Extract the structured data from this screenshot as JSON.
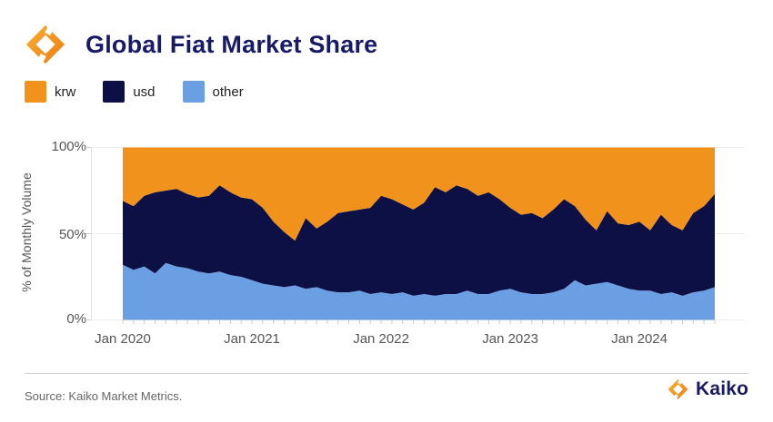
{
  "header": {
    "title": "Global Fiat Market Share"
  },
  "legend": [
    {
      "label": "krw",
      "color": "#F0921C"
    },
    {
      "label": "usd",
      "color": "#0D1045"
    },
    {
      "label": "other",
      "color": "#6B9FE4"
    }
  ],
  "y_axis": {
    "title": "% of Monthly Volume",
    "ticks": [
      "100%",
      "50%",
      "0%"
    ]
  },
  "x_axis": {
    "ticks": [
      "Jan 2020",
      "Jan 2021",
      "Jan 2022",
      "Jan 2023",
      "Jan 2024"
    ]
  },
  "footer": {
    "source": "Source: Kaiko Market Metrics.",
    "brand": "Kaiko"
  },
  "colors": {
    "krw": "#F0921C",
    "usd": "#0D1045",
    "other": "#6B9FE4",
    "grid": "#ededed",
    "axis": "#e2e2e2",
    "tick": "#cccccc",
    "tick_text": "#565656"
  },
  "chart_data": {
    "type": "area",
    "stacked": true,
    "title": "Global Fiat Market Share",
    "xlabel": "",
    "ylabel": "% of Monthly Volume",
    "ylim": [
      0,
      100
    ],
    "grid": "horizontal",
    "legend_position": "top-left",
    "x": [
      "2020-01",
      "2020-02",
      "2020-03",
      "2020-04",
      "2020-05",
      "2020-06",
      "2020-07",
      "2020-08",
      "2020-09",
      "2020-10",
      "2020-11",
      "2020-12",
      "2021-01",
      "2021-02",
      "2021-03",
      "2021-04",
      "2021-05",
      "2021-06",
      "2021-07",
      "2021-08",
      "2021-09",
      "2021-10",
      "2021-11",
      "2021-12",
      "2022-01",
      "2022-02",
      "2022-03",
      "2022-04",
      "2022-05",
      "2022-06",
      "2022-07",
      "2022-08",
      "2022-09",
      "2022-10",
      "2022-11",
      "2022-12",
      "2023-01",
      "2023-02",
      "2023-03",
      "2023-04",
      "2023-05",
      "2023-06",
      "2023-07",
      "2023-08",
      "2023-09",
      "2023-10",
      "2023-11",
      "2023-12",
      "2024-01",
      "2024-02",
      "2024-03",
      "2024-04",
      "2024-05",
      "2024-06",
      "2024-07",
      "2024-08"
    ],
    "x_tick_labels": [
      "Jan 2020",
      "Jan 2021",
      "Jan 2022",
      "Jan 2023",
      "Jan 2024"
    ],
    "x_tick_indices": [
      0,
      12,
      24,
      36,
      48
    ],
    "y_tick_labels": [
      "0%",
      "50%",
      "100%"
    ],
    "y_tick_values": [
      0,
      50,
      100
    ],
    "stack_order_bottom_to_top": [
      "other",
      "usd",
      "krw"
    ],
    "series": [
      {
        "name": "other",
        "color": "#6B9FE4",
        "values": [
          32,
          29,
          31,
          27,
          33,
          31,
          30,
          28,
          27,
          28,
          26,
          25,
          23,
          21,
          20,
          19,
          20,
          18,
          19,
          17,
          16,
          16,
          17,
          15,
          16,
          15,
          16,
          14,
          15,
          14,
          15,
          15,
          17,
          15,
          15,
          17,
          18,
          16,
          15,
          15,
          16,
          18,
          23,
          20,
          21,
          22,
          20,
          18,
          17,
          17,
          15,
          16,
          14,
          16,
          17,
          19
        ]
      },
      {
        "name": "usd",
        "color": "#0D1045",
        "values": [
          37,
          37,
          41,
          47,
          42,
          45,
          43,
          43,
          45,
          50,
          48,
          46,
          47,
          44,
          37,
          32,
          26,
          41,
          34,
          40,
          46,
          47,
          47,
          50,
          56,
          55,
          51,
          50,
          53,
          63,
          59,
          63,
          59,
          57,
          59,
          53,
          47,
          45,
          47,
          44,
          48,
          52,
          43,
          38,
          31,
          41,
          36,
          37,
          40,
          35,
          46,
          39,
          38,
          46,
          49,
          54
        ]
      },
      {
        "name": "krw",
        "color": "#F0921C",
        "values": [
          31,
          34,
          28,
          26,
          25,
          24,
          27,
          29,
          28,
          22,
          26,
          29,
          30,
          35,
          43,
          49,
          54,
          41,
          47,
          43,
          38,
          37,
          36,
          35,
          28,
          30,
          33,
          36,
          32,
          23,
          26,
          22,
          24,
          28,
          26,
          30,
          35,
          39,
          38,
          41,
          36,
          30,
          34,
          42,
          48,
          37,
          44,
          45,
          43,
          48,
          39,
          45,
          48,
          38,
          34,
          27
        ]
      }
    ]
  }
}
